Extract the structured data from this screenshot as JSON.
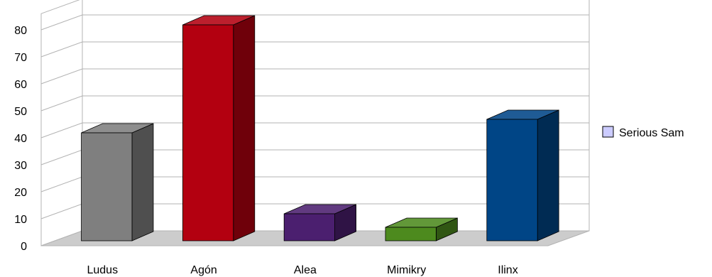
{
  "chart_data": {
    "type": "bar",
    "title": "",
    "xlabel": "",
    "ylabel": "",
    "categories": [
      "Ludus",
      "Agón",
      "Alea",
      "Mimikry",
      "Ilinx"
    ],
    "series": [
      {
        "name": "Serious Sam",
        "values": [
          40,
          80,
          10,
          5,
          45
        ]
      }
    ],
    "bar_colors": [
      "#7f7f7f",
      "#b30010",
      "#4b1f6f",
      "#4d8a1e",
      "#004586"
    ],
    "ylim": [
      0,
      80
    ],
    "yticks": [
      0,
      10,
      20,
      30,
      40,
      50,
      60,
      70,
      80
    ],
    "three_d": true,
    "grid": true,
    "legend": {
      "placement": "right",
      "swatch_color": "#ccccff"
    }
  }
}
